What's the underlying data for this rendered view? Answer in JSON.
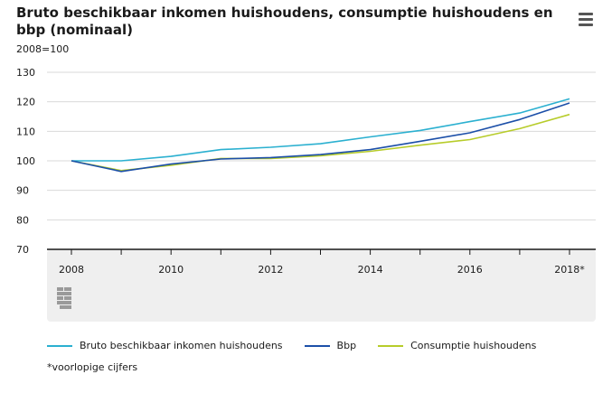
{
  "header": {
    "title": "Bruto beschikbaar inkomen huishoudens, consumptie huishoudens en bbp (nominaal)",
    "menu_icon": "hamburger-menu-icon"
  },
  "footnote": "*voorlopige cijfers",
  "logo": "cbs-logo",
  "chart_data": {
    "type": "line",
    "title": "Bruto beschikbaar inkomen huishoudens, consumptie huishoudens en bbp (nominaal)",
    "subtitle": "2008=100",
    "x": [
      "2008",
      "2009",
      "2010",
      "2011",
      "2012",
      "2013",
      "2014",
      "2015",
      "2016",
      "2017",
      "2018*"
    ],
    "x_tick_labels": [
      "2008",
      "2010",
      "2012",
      "2014",
      "2016",
      "2018*"
    ],
    "ylim": [
      70,
      130
    ],
    "y_ticks": [
      "70",
      "80",
      "90",
      "100",
      "110",
      "120",
      "130"
    ],
    "grid": true,
    "legend_position": "bottom",
    "series": [
      {
        "name": "Bruto beschikbaar inkomen huishoudens",
        "color": "#2bb0d0",
        "values": [
          100,
          100,
          101.5,
          103.8,
          104.6,
          105.8,
          108.1,
          110.3,
          113.3,
          116.2,
          121.0
        ]
      },
      {
        "name": "Bbp",
        "color": "#1c4fa8",
        "values": [
          100,
          96.4,
          98.9,
          100.6,
          101.1,
          102.1,
          103.8,
          106.6,
          109.5,
          114.0,
          119.6
        ]
      },
      {
        "name": "Consumptie huishoudens",
        "color": "#b7cc2a",
        "values": [
          100,
          96.7,
          98.5,
          100.8,
          100.8,
          101.7,
          103.2,
          105.3,
          107.2,
          110.9,
          115.7
        ]
      }
    ]
  }
}
